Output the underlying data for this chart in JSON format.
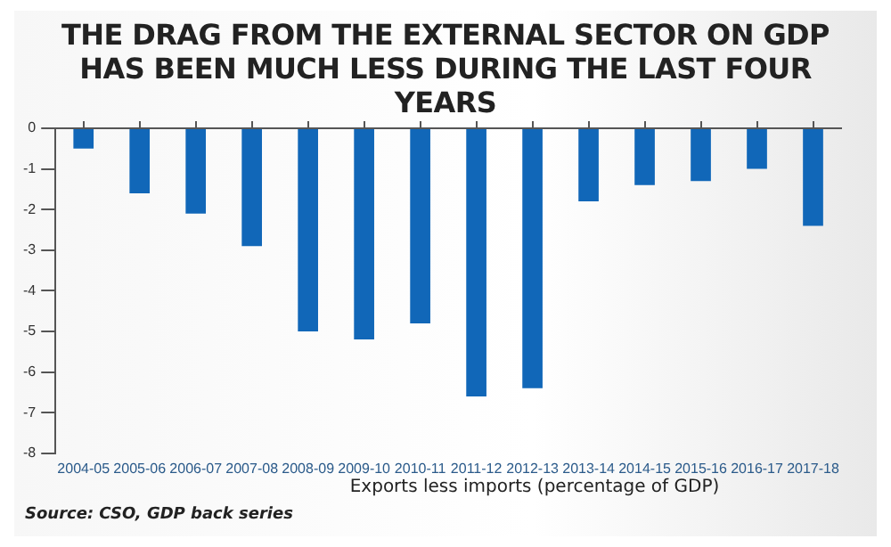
{
  "chart_data": {
    "type": "bar",
    "title": "THE DRAG FROM THE EXTERNAL SECTOR ON GDP HAS BEEN MUCH LESS DURING THE LAST FOUR YEARS",
    "xlabel": "Exports less imports (percentage of GDP)",
    "annotations": [
      "Source: CSO, GDP back series"
    ],
    "categories": [
      "2004-05",
      "2005-06",
      "2006-07",
      "2007-08",
      "2008-09",
      "2009-10",
      "2010-11",
      "2011-12",
      "2012-13",
      "2013-14",
      "2014-15",
      "2015-16",
      "2016-17",
      "2017-18"
    ],
    "values": [
      -0.5,
      -1.6,
      -2.1,
      -2.9,
      -5.0,
      -5.2,
      -4.8,
      -6.6,
      -6.4,
      -1.8,
      -1.4,
      -1.3,
      -1.0,
      -2.4
    ],
    "color": "#1167b8",
    "ylim": [
      -8,
      0
    ],
    "yticks": [
      0,
      -1,
      -2,
      -3,
      -4,
      -5,
      -6,
      -7,
      -8
    ],
    "grid": false,
    "legend": false
  }
}
